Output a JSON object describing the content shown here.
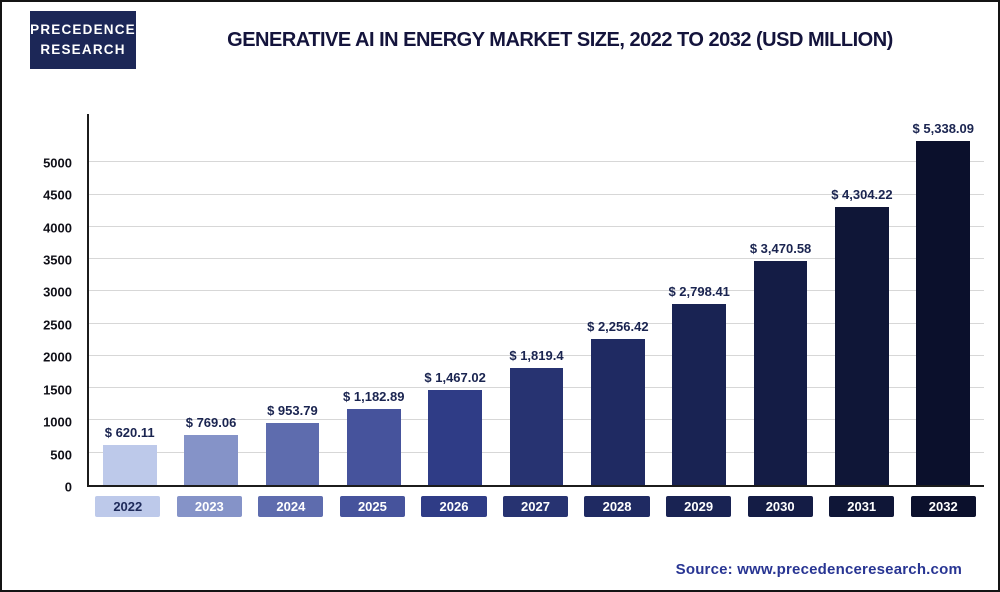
{
  "header": {
    "logo_line1": "PRECEDENCE",
    "logo_line2": "RESEARCH",
    "title": "Generative AI in Energy Market Size, 2022 to 2032 (USD Million)"
  },
  "chart_data": {
    "type": "bar",
    "title": "Generative AI in Energy Market Size, 2022 to 2032 (USD Million)",
    "unit": "USD Million",
    "categories": [
      "2022",
      "2023",
      "2024",
      "2025",
      "2026",
      "2027",
      "2028",
      "2029",
      "2030",
      "2031",
      "2032"
    ],
    "values": [
      620.11,
      769.06,
      953.79,
      1182.89,
      1467.02,
      1819.4,
      2256.42,
      2798.41,
      3470.58,
      4304.22,
      5338.09
    ],
    "value_labels": [
      "$ 620.11",
      "$ 769.06",
      "$ 953.79",
      "$ 1,182.89",
      "$ 1,467.02",
      "$ 1,819.4",
      "$ 2,256.42",
      "$ 2,798.41",
      "$ 3,470.58",
      "$ 4,304.22",
      "$ 5,338.09"
    ],
    "xlabel": "",
    "ylabel": "",
    "ylim": [
      0,
      5000
    ],
    "yticks": [
      0,
      500,
      1000,
      1500,
      2000,
      2500,
      3000,
      3500,
      4000,
      4500,
      5000
    ],
    "grid": "horizontal",
    "legend": "none",
    "bar_colors": [
      "#bdc9ea",
      "#8593c8",
      "#5e6cae",
      "#46539c",
      "#2f3c86",
      "#273371",
      "#1f2a62",
      "#192353",
      "#141c45",
      "#0f1637",
      "#0b102c"
    ],
    "chip_text_colors": [
      "#1e2a5a",
      "#ffffff",
      "#ffffff",
      "#ffffff",
      "#ffffff",
      "#ffffff",
      "#ffffff",
      "#ffffff",
      "#ffffff",
      "#ffffff",
      "#ffffff"
    ]
  },
  "footer": {
    "source": "Source: www.precedenceresearch.com"
  }
}
